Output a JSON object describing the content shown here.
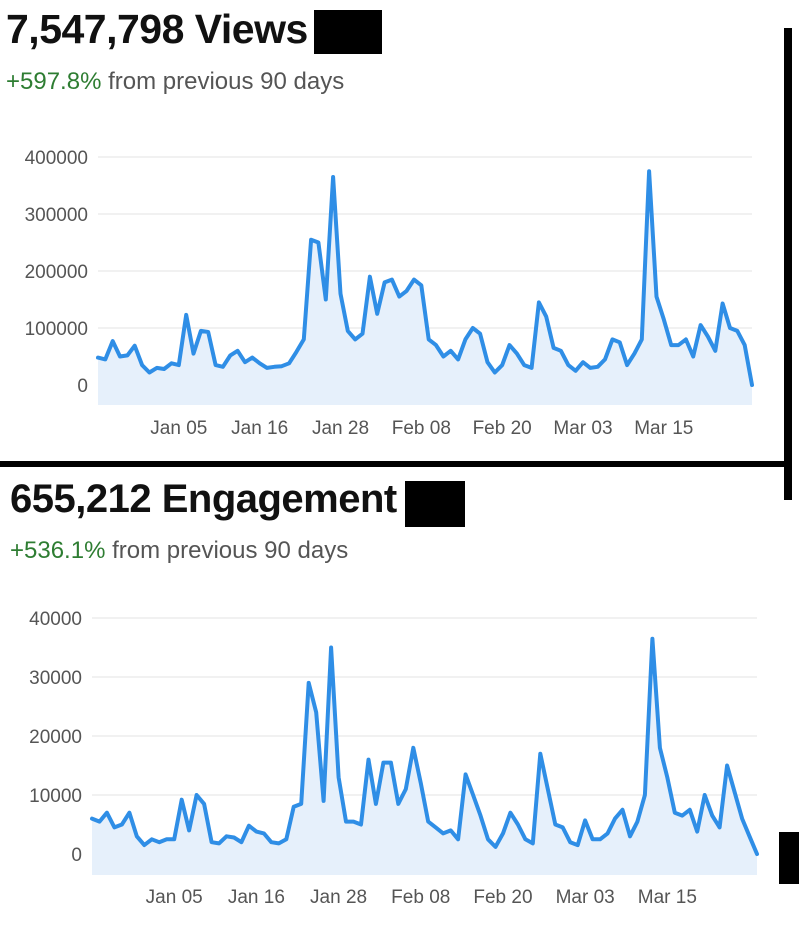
{
  "views": {
    "headline": "7,547,798 Views",
    "change_pct": "+597.8%",
    "change_text": " from previous 90 days"
  },
  "engagement": {
    "headline": "655,212 Engagement",
    "change_pct": "+536.1%",
    "change_text": " from previous 90 days"
  },
  "colors": {
    "line": "#2f8ee6",
    "fill": "#e6f0fb",
    "positive": "#2e7d32"
  },
  "chart_data": [
    {
      "type": "area",
      "ylim": [
        0,
        400000
      ],
      "y_ticks": [
        "0",
        "100000",
        "200000",
        "300000",
        "400000"
      ],
      "x_tick_labels": [
        "Jan 05",
        "Jan 16",
        "Jan 28",
        "Feb 08",
        "Feb 20",
        "Mar 03",
        "Mar 15"
      ],
      "x_tick_index": [
        11,
        22,
        33,
        44,
        55,
        66,
        77
      ],
      "values": [
        48000,
        45000,
        77000,
        50000,
        52000,
        69000,
        35000,
        22000,
        30000,
        28000,
        38000,
        35000,
        123000,
        55000,
        95000,
        93000,
        35000,
        32000,
        52000,
        60000,
        40000,
        48000,
        38000,
        30000,
        32000,
        33000,
        38000,
        58000,
        80000,
        255000,
        250000,
        150000,
        365000,
        160000,
        95000,
        80000,
        90000,
        190000,
        125000,
        180000,
        185000,
        155000,
        165000,
        185000,
        175000,
        80000,
        70000,
        50000,
        60000,
        45000,
        80000,
        100000,
        90000,
        40000,
        22000,
        35000,
        70000,
        55000,
        35000,
        30000,
        145000,
        120000,
        65000,
        60000,
        35000,
        25000,
        40000,
        30000,
        32000,
        45000,
        80000,
        75000,
        35000,
        55000,
        80000,
        375000,
        155000,
        115000,
        70000,
        70000,
        80000,
        50000,
        105000,
        85000,
        60000,
        143000,
        100000,
        95000,
        70000,
        0
      ]
    },
    {
      "type": "area",
      "ylim": [
        0,
        40000
      ],
      "y_ticks": [
        "0",
        "10000",
        "20000",
        "30000",
        "40000"
      ],
      "x_tick_labels": [
        "Jan 05",
        "Jan 16",
        "Jan 28",
        "Feb 08",
        "Feb 20",
        "Mar 03",
        "Mar 15"
      ],
      "x_tick_index": [
        11,
        22,
        33,
        44,
        55,
        66,
        77
      ],
      "values": [
        6000,
        5500,
        7000,
        4500,
        5000,
        7000,
        3000,
        1500,
        2500,
        2000,
        2500,
        2500,
        9200,
        4000,
        10000,
        8500,
        2000,
        1800,
        3000,
        2800,
        2000,
        4800,
        3800,
        3500,
        2000,
        1800,
        2500,
        8000,
        8500,
        29000,
        24000,
        9000,
        35000,
        13000,
        5500,
        5500,
        5000,
        16000,
        8500,
        15500,
        15500,
        8500,
        11000,
        18000,
        12000,
        5500,
        4500,
        3500,
        4000,
        2500,
        13500,
        10000,
        6500,
        2500,
        1200,
        3500,
        7000,
        5000,
        2500,
        1800,
        17000,
        11000,
        5000,
        4500,
        2000,
        1500,
        5700,
        2500,
        2500,
        3500,
        6000,
        7500,
        3000,
        5500,
        10000,
        36500,
        18000,
        13000,
        7000,
        6500,
        7500,
        3800,
        10000,
        6500,
        4500,
        15000,
        10500,
        6000,
        3000,
        0
      ]
    }
  ]
}
